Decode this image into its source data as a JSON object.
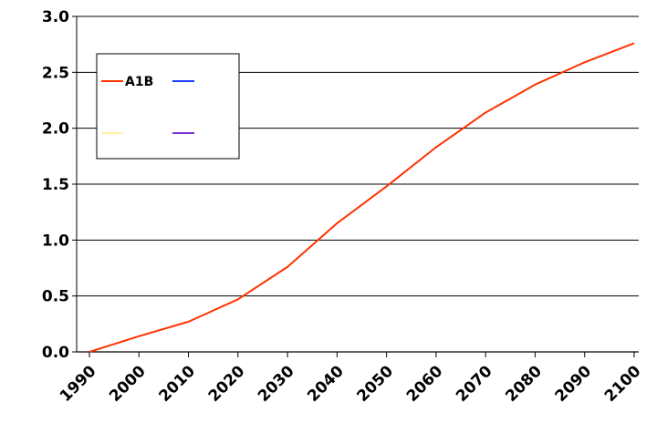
{
  "chart_data": {
    "type": "line",
    "x": [
      1990,
      2000,
      2010,
      2020,
      2030,
      2040,
      2050,
      2060,
      2070,
      2080,
      2090,
      2100
    ],
    "series": [
      {
        "name": "A1B",
        "color": "#ff3300",
        "values": [
          0.0,
          0.14,
          0.27,
          0.47,
          0.76,
          1.15,
          1.48,
          1.83,
          2.14,
          2.39,
          2.59,
          2.76
        ]
      }
    ],
    "legend_entries": [
      {
        "name": "A1B",
        "color": "#ff3300"
      },
      {
        "name": "",
        "color": "#1a3cff"
      },
      {
        "name": "",
        "color": "#fff2a0"
      },
      {
        "name": "",
        "color": "#7a2fd0"
      }
    ],
    "y_ticks": [
      "0.0",
      "0.5",
      "1.0",
      "1.5",
      "2.0",
      "2.5",
      "3.0"
    ],
    "x_ticks": [
      "1990",
      "2000",
      "2010",
      "2020",
      "2030",
      "2040",
      "2050",
      "2060",
      "2070",
      "2080",
      "2090",
      "2100"
    ],
    "ylim": [
      0,
      3.0
    ],
    "xlim": [
      1990,
      2100
    ],
    "grid": "horizontal",
    "legend_placement": "top-left",
    "title": "",
    "xlabel": "",
    "ylabel": ""
  }
}
